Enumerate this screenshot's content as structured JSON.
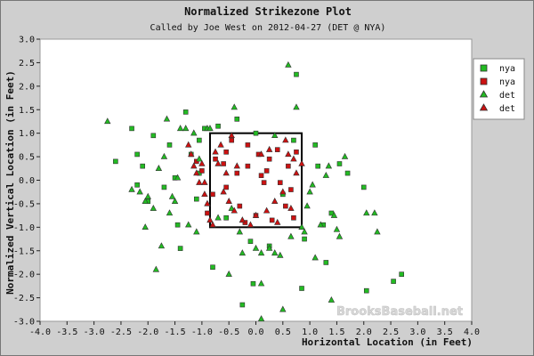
{
  "chart_data": {
    "type": "scatter",
    "title": "Normalized Strikezone Plot",
    "subtitle": "Called by Joe West on 2012-04-27 (DET @ NYA)",
    "xlabel": "Horizontal Location (in Feet)",
    "ylabel": "Normalized Vertical Location (in Feet)",
    "xlim": [
      -4.0,
      4.0
    ],
    "ylim": [
      -3.0,
      3.0
    ],
    "xticks": [
      "-4.0",
      "-3.5",
      "-3.0",
      "-2.5",
      "-2.0",
      "-1.5",
      "-1.0",
      "-0.5",
      "0.0",
      "0.5",
      "1.0",
      "1.5",
      "2.0",
      "2.5",
      "3.0",
      "3.5",
      "4.0"
    ],
    "yticks": [
      "3.0",
      "2.5",
      "2.0",
      "1.5",
      "1.0",
      "0.5",
      "0.0",
      "-0.5",
      "-1.0",
      "-1.5",
      "-2.0",
      "-2.5",
      "-3.0"
    ],
    "grid": false,
    "legend_position": "top-right",
    "strike_zone": {
      "x": [
        -0.85,
        0.85
      ],
      "y": [
        -1.0,
        1.0
      ]
    },
    "watermark": "BrooksBaseball.net",
    "series": [
      {
        "name": "nya",
        "marker": "square",
        "color": "#22bb22",
        "points": [
          [
            -2.6,
            0.4
          ],
          [
            -2.3,
            1.1
          ],
          [
            -2.2,
            0.55
          ],
          [
            -2.2,
            -0.1
          ],
          [
            -2.1,
            0.3
          ],
          [
            -2.0,
            -0.45
          ],
          [
            -1.9,
            0.95
          ],
          [
            -1.7,
            -0.15
          ],
          [
            -1.6,
            0.75
          ],
          [
            -1.5,
            0.05
          ],
          [
            -1.45,
            -0.95
          ],
          [
            -1.4,
            -1.45
          ],
          [
            -1.3,
            1.45
          ],
          [
            -1.2,
            0.55
          ],
          [
            -1.1,
            -0.4
          ],
          [
            -1.05,
            0.15
          ],
          [
            -0.95,
            1.1
          ],
          [
            -0.7,
            1.15
          ],
          [
            -0.55,
            -0.8
          ],
          [
            -0.35,
            1.3
          ],
          [
            -0.1,
            -1.3
          ],
          [
            0.0,
            1.0
          ],
          [
            0.25,
            -1.4
          ],
          [
            0.5,
            -0.3
          ],
          [
            0.7,
            0.85
          ],
          [
            0.75,
            2.25
          ],
          [
            0.9,
            -1.25
          ],
          [
            1.1,
            0.75
          ],
          [
            1.15,
            0.3
          ],
          [
            1.25,
            -0.95
          ],
          [
            1.3,
            -1.75
          ],
          [
            1.4,
            -0.7
          ],
          [
            1.55,
            0.35
          ],
          [
            1.7,
            0.15
          ],
          [
            2.0,
            -0.15
          ],
          [
            2.05,
            -2.35
          ],
          [
            2.55,
            -2.15
          ],
          [
            2.7,
            -2.0
          ],
          [
            -0.8,
            -1.85
          ],
          [
            -0.05,
            -2.2
          ],
          [
            -0.25,
            -2.65
          ],
          [
            0.85,
            -2.3
          ],
          [
            -1.05,
            0.85
          ]
        ]
      },
      {
        "name": "nya",
        "marker": "square",
        "color": "#cc1111",
        "points": [
          [
            -0.75,
            0.45
          ],
          [
            -0.6,
            0.35
          ],
          [
            -0.55,
            -0.15
          ],
          [
            -0.45,
            0.85
          ],
          [
            -0.35,
            0.15
          ],
          [
            -0.3,
            -0.55
          ],
          [
            -0.15,
            0.3
          ],
          [
            0.0,
            -0.75
          ],
          [
            0.05,
            0.55
          ],
          [
            0.15,
            -0.05
          ],
          [
            0.2,
            0.2
          ],
          [
            0.3,
            -0.85
          ],
          [
            0.4,
            0.65
          ],
          [
            0.55,
            -0.55
          ],
          [
            0.6,
            0.3
          ],
          [
            0.65,
            -0.2
          ],
          [
            0.75,
            0.6
          ],
          [
            -0.8,
            -0.3
          ],
          [
            -0.2,
            -0.9
          ],
          [
            0.45,
            -0.05
          ],
          [
            -1.0,
            0.2
          ],
          [
            -1.1,
            0.4
          ],
          [
            -0.15,
            0.75
          ],
          [
            0.25,
            0.45
          ],
          [
            0.7,
            -0.8
          ],
          [
            -0.9,
            -0.7
          ],
          [
            0.1,
            0.1
          ],
          [
            -0.55,
            0.6
          ]
        ]
      },
      {
        "name": "det",
        "marker": "triangle",
        "color": "#22bb22",
        "points": [
          [
            -2.75,
            1.25
          ],
          [
            -2.3,
            -0.2
          ],
          [
            -2.15,
            -0.25
          ],
          [
            -2.05,
            -0.45
          ],
          [
            -2.0,
            -0.35
          ],
          [
            -1.9,
            -0.6
          ],
          [
            -1.85,
            -1.9
          ],
          [
            -1.7,
            0.5
          ],
          [
            -1.65,
            1.3
          ],
          [
            -1.6,
            -0.7
          ],
          [
            -1.55,
            -0.35
          ],
          [
            -1.5,
            -0.45
          ],
          [
            -1.45,
            0.05
          ],
          [
            -1.4,
            1.1
          ],
          [
            -1.3,
            1.1
          ],
          [
            -1.25,
            -0.95
          ],
          [
            -1.15,
            1.0
          ],
          [
            -1.1,
            -1.1
          ],
          [
            -1.05,
            0.45
          ],
          [
            -0.9,
            1.1
          ],
          [
            -0.85,
            1.1
          ],
          [
            -0.7,
            -0.8
          ],
          [
            -0.45,
            -0.6
          ],
          [
            -0.4,
            1.55
          ],
          [
            -0.3,
            -1.1
          ],
          [
            -0.25,
            -1.55
          ],
          [
            0.0,
            -1.45
          ],
          [
            0.1,
            -1.55
          ],
          [
            0.25,
            -1.45
          ],
          [
            0.35,
            -1.55
          ],
          [
            0.45,
            -1.6
          ],
          [
            0.6,
            2.45
          ],
          [
            0.65,
            -1.2
          ],
          [
            0.75,
            1.55
          ],
          [
            0.9,
            -1.1
          ],
          [
            0.95,
            -0.55
          ],
          [
            1.0,
            -0.25
          ],
          [
            1.05,
            -0.1
          ],
          [
            1.1,
            -1.65
          ],
          [
            1.2,
            -0.95
          ],
          [
            1.3,
            0.1
          ],
          [
            1.35,
            0.3
          ],
          [
            1.45,
            -0.75
          ],
          [
            1.5,
            -1.05
          ],
          [
            1.55,
            -1.2
          ],
          [
            1.65,
            0.5
          ],
          [
            2.05,
            -0.7
          ],
          [
            2.2,
            -0.7
          ],
          [
            2.25,
            -1.1
          ],
          [
            -2.05,
            -1.0
          ],
          [
            -1.75,
            -1.4
          ],
          [
            -0.5,
            -2.0
          ],
          [
            0.1,
            -2.2
          ],
          [
            0.5,
            -2.75
          ],
          [
            1.4,
            -2.55
          ],
          [
            -1.8,
            0.25
          ],
          [
            0.1,
            -2.95
          ],
          [
            0.85,
            -1.0
          ],
          [
            0.35,
            0.95
          ]
        ]
      },
      {
        "name": "det",
        "marker": "triangle",
        "color": "#cc1111",
        "points": [
          [
            -1.25,
            0.75
          ],
          [
            -1.2,
            0.55
          ],
          [
            -1.15,
            0.3
          ],
          [
            -1.1,
            0.15
          ],
          [
            -1.05,
            -0.05
          ],
          [
            -0.95,
            -0.3
          ],
          [
            -0.9,
            -0.5
          ],
          [
            -0.85,
            -0.85
          ],
          [
            -0.8,
            -0.95
          ],
          [
            -0.75,
            0.6
          ],
          [
            -0.7,
            0.35
          ],
          [
            -0.6,
            -0.25
          ],
          [
            -0.5,
            -0.45
          ],
          [
            -0.4,
            -0.65
          ],
          [
            -0.35,
            0.3
          ],
          [
            -0.25,
            -0.85
          ],
          [
            -0.1,
            -0.95
          ],
          [
            0.0,
            -0.75
          ],
          [
            0.1,
            0.55
          ],
          [
            0.2,
            -0.65
          ],
          [
            0.35,
            -0.45
          ],
          [
            0.5,
            -0.25
          ],
          [
            0.55,
            0.85
          ],
          [
            0.6,
            0.55
          ],
          [
            0.7,
            0.45
          ],
          [
            0.75,
            0.15
          ],
          [
            -0.55,
            0.15
          ],
          [
            -1.0,
            0.35
          ],
          [
            -0.95,
            -0.05
          ],
          [
            0.4,
            -0.9
          ],
          [
            0.25,
            0.65
          ],
          [
            -0.45,
            0.95
          ],
          [
            0.65,
            -0.6
          ],
          [
            -0.65,
            0.75
          ],
          [
            0.85,
            0.35
          ]
        ]
      }
    ]
  }
}
